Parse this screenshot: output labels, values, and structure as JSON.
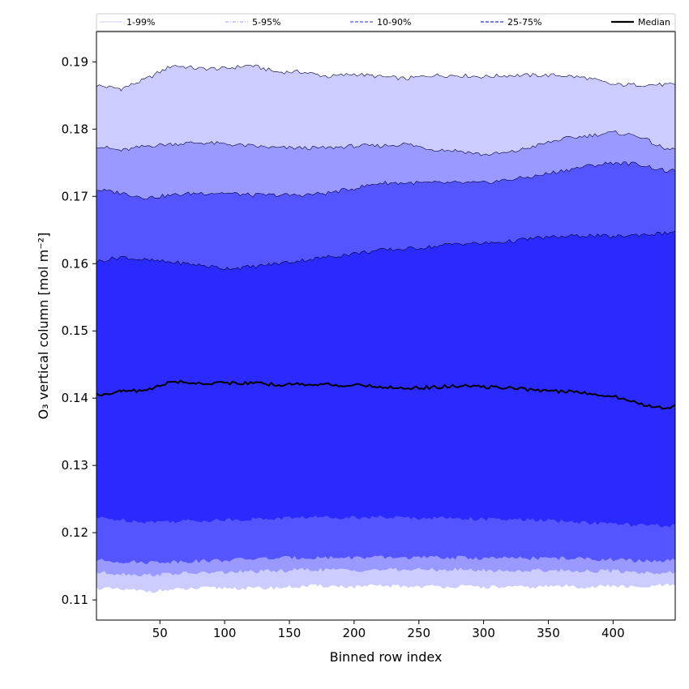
{
  "chart_data": {
    "type": "area",
    "title": "",
    "xlabel": "Binned row index",
    "ylabel": "O₃ vertical column [mol m⁻²]",
    "xlim": [
      1,
      448
    ],
    "ylim": [
      0.107,
      0.1945
    ],
    "xticks": [
      50,
      100,
      150,
      200,
      250,
      300,
      350,
      400
    ],
    "yticks": [
      0.11,
      0.12,
      0.13,
      0.14,
      0.15,
      0.16,
      0.17,
      0.18,
      0.19
    ],
    "ytick_labels": [
      "0.11",
      "0.12",
      "0.13",
      "0.14",
      "0.15",
      "0.16",
      "0.17",
      "0.18",
      "0.19"
    ],
    "grid": false,
    "legend_position": "top",
    "x": [
      1,
      20,
      40,
      60,
      80,
      100,
      120,
      140,
      160,
      180,
      200,
      220,
      240,
      260,
      280,
      300,
      320,
      340,
      360,
      380,
      400,
      420,
      440,
      448
    ],
    "bands": [
      {
        "name": "1-99%",
        "color": "#ccccff",
        "upper": [
          0.1865,
          0.186,
          0.1875,
          0.1895,
          0.189,
          0.189,
          0.1895,
          0.1885,
          0.1885,
          0.1878,
          0.1882,
          0.1878,
          0.1875,
          0.188,
          0.188,
          0.1878,
          0.188,
          0.188,
          0.188,
          0.1876,
          0.1866,
          0.1866,
          0.1866,
          0.1866
        ],
        "lower": [
          0.1118,
          0.1115,
          0.1113,
          0.1115,
          0.1117,
          0.1118,
          0.1117,
          0.1118,
          0.112,
          0.1121,
          0.1119,
          0.1121,
          0.112,
          0.112,
          0.112,
          0.1119,
          0.1119,
          0.1119,
          0.1121,
          0.1119,
          0.1121,
          0.1118,
          0.1122,
          0.1122
        ]
      },
      {
        "name": "5-95%",
        "color": "#9999ff",
        "upper": [
          0.1775,
          0.1768,
          0.1775,
          0.1778,
          0.178,
          0.1778,
          0.1775,
          0.1772,
          0.1772,
          0.1772,
          0.1775,
          0.1775,
          0.1778,
          0.177,
          0.1768,
          0.1762,
          0.1765,
          0.1775,
          0.1785,
          0.179,
          0.1795,
          0.179,
          0.177,
          0.177
        ],
        "lower": [
          0.1141,
          0.1139,
          0.1137,
          0.1139,
          0.114,
          0.1141,
          0.1142,
          0.1143,
          0.1145,
          0.1145,
          0.1144,
          0.1145,
          0.1145,
          0.1145,
          0.1145,
          0.1144,
          0.1143,
          0.1144,
          0.1144,
          0.1143,
          0.1143,
          0.1141,
          0.114,
          0.1141
        ]
      },
      {
        "name": "10-90%",
        "color": "#5555ff",
        "upper": [
          0.171,
          0.1705,
          0.1698,
          0.1702,
          0.1705,
          0.1705,
          0.1702,
          0.1702,
          0.1702,
          0.1705,
          0.1712,
          0.172,
          0.172,
          0.172,
          0.172,
          0.172,
          0.1725,
          0.173,
          0.1738,
          0.1745,
          0.175,
          0.1748,
          0.1738,
          0.1738
        ],
        "lower": [
          0.1159,
          0.1157,
          0.1156,
          0.1157,
          0.1158,
          0.1159,
          0.1161,
          0.1162,
          0.1163,
          0.1163,
          0.1163,
          0.1163,
          0.1163,
          0.1163,
          0.1163,
          0.1162,
          0.1162,
          0.1162,
          0.1162,
          0.1161,
          0.116,
          0.1158,
          0.1158,
          0.1159
        ]
      },
      {
        "name": "25-75%",
        "color": "#2a2aff",
        "upper": [
          0.1603,
          0.161,
          0.1605,
          0.1602,
          0.1598,
          0.1593,
          0.1595,
          0.16,
          0.1605,
          0.161,
          0.1615,
          0.162,
          0.1622,
          0.1625,
          0.163,
          0.163,
          0.1633,
          0.1638,
          0.164,
          0.1642,
          0.164,
          0.1643,
          0.1645,
          0.1648
        ],
        "lower": [
          0.1222,
          0.1219,
          0.1216,
          0.1217,
          0.1218,
          0.1219,
          0.122,
          0.1221,
          0.1223,
          0.1223,
          0.1223,
          0.1223,
          0.1222,
          0.1222,
          0.1222,
          0.122,
          0.1219,
          0.1219,
          0.1217,
          0.1215,
          0.1213,
          0.1211,
          0.121,
          0.1212
        ]
      }
    ],
    "median": {
      "name": "Median",
      "color": "#000000",
      "values": [
        0.1405,
        0.141,
        0.1412,
        0.1425,
        0.1422,
        0.1423,
        0.1422,
        0.142,
        0.1421,
        0.142,
        0.1419,
        0.1417,
        0.1415,
        0.1416,
        0.1418,
        0.1417,
        0.1415,
        0.1412,
        0.141,
        0.1408,
        0.1403,
        0.1392,
        0.1385,
        0.139
      ]
    },
    "legend": [
      {
        "label": "1-99%",
        "color": "#ccccff",
        "style": "solid"
      },
      {
        "label": "5-95%",
        "color": "#9999ff",
        "style": "dashdot"
      },
      {
        "label": "10-90%",
        "color": "#5555ff",
        "style": "dashed"
      },
      {
        "label": "25-75%",
        "color": "#2a2aff",
        "style": "dashed"
      },
      {
        "label": "Median",
        "color": "#000000",
        "style": "solid-thick"
      }
    ]
  }
}
